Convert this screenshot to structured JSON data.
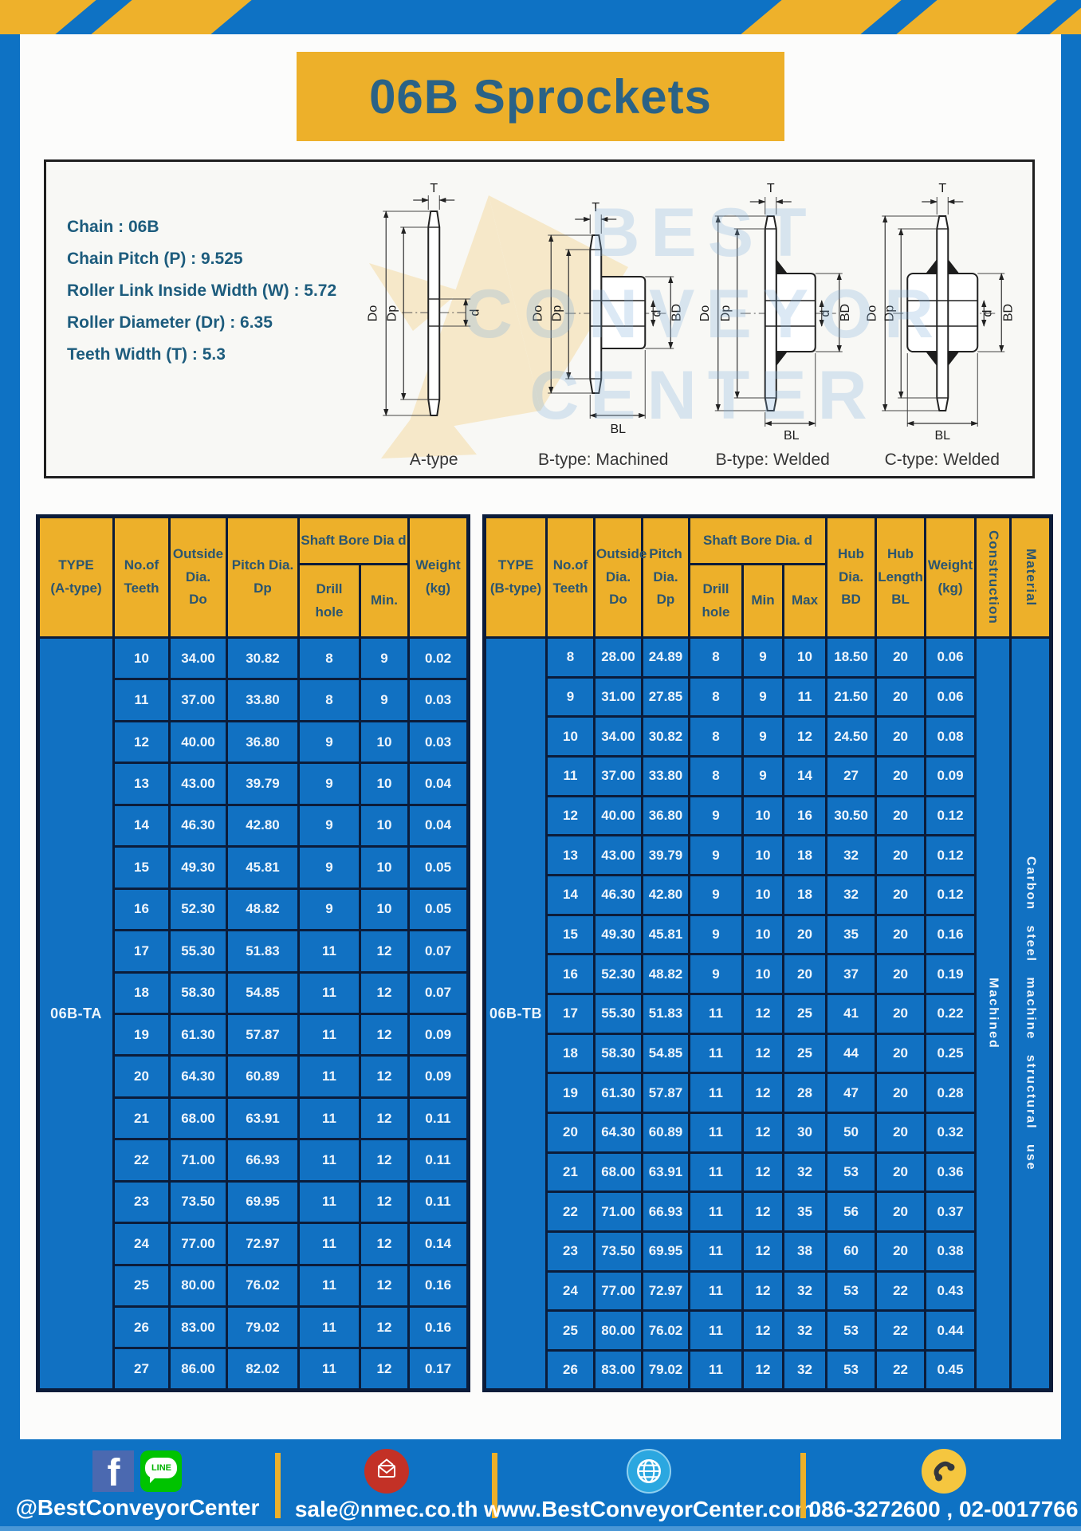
{
  "page": {
    "title": "06B Sprockets"
  },
  "specs": {
    "lines": [
      "Chain : 06B",
      "Chain Pitch (P) : 9.525",
      "Roller Link Inside Width (W) : 5.72",
      "Roller Diameter (Dr) : 6.35",
      "Teeth Width (T) : 5.3"
    ]
  },
  "diagram": {
    "watermark": [
      "BEST",
      "CONVEYOR",
      "CENTER"
    ],
    "dims": {
      "T": "T",
      "Do": "Do",
      "Dp": "Dp",
      "d": "d",
      "BD": "BD",
      "BL": "BL"
    },
    "captions": [
      "A-type",
      "B-type: Machined",
      "B-type: Welded",
      "C-type: Welded"
    ]
  },
  "table_a": {
    "header": {
      "type": "TYPE\n(A-type)",
      "teeth": "No.of\nTeeth",
      "outside": "Outside\nDia.\nDo",
      "pitch": "Pitch Dia.\nDp",
      "shaft_bore": "Shaft Bore Dia d",
      "drill": "Drill hole",
      "min": "Min.",
      "weight": "Weight\n(kg)"
    },
    "type_label": "06B-TA",
    "rows": [
      [
        "10",
        "34.00",
        "30.82",
        "8",
        "9",
        "0.02"
      ],
      [
        "11",
        "37.00",
        "33.80",
        "8",
        "9",
        "0.03"
      ],
      [
        "12",
        "40.00",
        "36.80",
        "9",
        "10",
        "0.03"
      ],
      [
        "13",
        "43.00",
        "39.79",
        "9",
        "10",
        "0.04"
      ],
      [
        "14",
        "46.30",
        "42.80",
        "9",
        "10",
        "0.04"
      ],
      [
        "15",
        "49.30",
        "45.81",
        "9",
        "10",
        "0.05"
      ],
      [
        "16",
        "52.30",
        "48.82",
        "9",
        "10",
        "0.05"
      ],
      [
        "17",
        "55.30",
        "51.83",
        "11",
        "12",
        "0.07"
      ],
      [
        "18",
        "58.30",
        "54.85",
        "11",
        "12",
        "0.07"
      ],
      [
        "19",
        "61.30",
        "57.87",
        "11",
        "12",
        "0.09"
      ],
      [
        "20",
        "64.30",
        "60.89",
        "11",
        "12",
        "0.09"
      ],
      [
        "21",
        "68.00",
        "63.91",
        "11",
        "12",
        "0.11"
      ],
      [
        "22",
        "71.00",
        "66.93",
        "11",
        "12",
        "0.11"
      ],
      [
        "23",
        "73.50",
        "69.95",
        "11",
        "12",
        "0.11"
      ],
      [
        "24",
        "77.00",
        "72.97",
        "11",
        "12",
        "0.14"
      ],
      [
        "25",
        "80.00",
        "76.02",
        "11",
        "12",
        "0.16"
      ],
      [
        "26",
        "83.00",
        "79.02",
        "11",
        "12",
        "0.16"
      ],
      [
        "27",
        "86.00",
        "82.02",
        "11",
        "12",
        "0.17"
      ]
    ]
  },
  "table_b": {
    "header": {
      "type": "TYPE\n(B-type)",
      "teeth": "No.of\nTeeth",
      "outside": "Outside\nDia.\nDo",
      "pitch": "Pitch\nDia.\nDp",
      "shaft_bore": "Shaft Bore Dia. d",
      "drill": "Drill hole",
      "min": "Min",
      "max": "Max",
      "hub_dia": "Hub\nDia.\nBD",
      "hub_len": "Hub\nLength\nBL",
      "weight": "Weight\n(kg)",
      "construction": "Construction",
      "material": "Material"
    },
    "type_label": "06B-TB",
    "construction": "Machined",
    "material": "Carbon steel machine structural use",
    "rows": [
      [
        "8",
        "28.00",
        "24.89",
        "8",
        "9",
        "10",
        "18.50",
        "20",
        "0.06"
      ],
      [
        "9",
        "31.00",
        "27.85",
        "8",
        "9",
        "11",
        "21.50",
        "20",
        "0.06"
      ],
      [
        "10",
        "34.00",
        "30.82",
        "8",
        "9",
        "12",
        "24.50",
        "20",
        "0.08"
      ],
      [
        "11",
        "37.00",
        "33.80",
        "8",
        "9",
        "14",
        "27",
        "20",
        "0.09"
      ],
      [
        "12",
        "40.00",
        "36.80",
        "9",
        "10",
        "16",
        "30.50",
        "20",
        "0.12"
      ],
      [
        "13",
        "43.00",
        "39.79",
        "9",
        "10",
        "18",
        "32",
        "20",
        "0.12"
      ],
      [
        "14",
        "46.30",
        "42.80",
        "9",
        "10",
        "18",
        "32",
        "20",
        "0.12"
      ],
      [
        "15",
        "49.30",
        "45.81",
        "9",
        "10",
        "20",
        "35",
        "20",
        "0.16"
      ],
      [
        "16",
        "52.30",
        "48.82",
        "9",
        "10",
        "20",
        "37",
        "20",
        "0.19"
      ],
      [
        "17",
        "55.30",
        "51.83",
        "11",
        "12",
        "25",
        "41",
        "20",
        "0.22"
      ],
      [
        "18",
        "58.30",
        "54.85",
        "11",
        "12",
        "25",
        "44",
        "20",
        "0.25"
      ],
      [
        "19",
        "61.30",
        "57.87",
        "11",
        "12",
        "28",
        "47",
        "20",
        "0.28"
      ],
      [
        "20",
        "64.30",
        "60.89",
        "11",
        "12",
        "30",
        "50",
        "20",
        "0.32"
      ],
      [
        "21",
        "68.00",
        "63.91",
        "11",
        "12",
        "32",
        "53",
        "20",
        "0.36"
      ],
      [
        "22",
        "71.00",
        "66.93",
        "11",
        "12",
        "35",
        "56",
        "20",
        "0.37"
      ],
      [
        "23",
        "73.50",
        "69.95",
        "11",
        "12",
        "38",
        "60",
        "20",
        "0.38"
      ],
      [
        "24",
        "77.00",
        "72.97",
        "11",
        "12",
        "32",
        "53",
        "22",
        "0.43"
      ],
      [
        "25",
        "80.00",
        "76.02",
        "11",
        "12",
        "32",
        "53",
        "22",
        "0.44"
      ],
      [
        "26",
        "83.00",
        "79.02",
        "11",
        "12",
        "32",
        "53",
        "22",
        "0.45"
      ]
    ]
  },
  "footer": {
    "social_label": "@BestConveyorCenter",
    "facebook_letter": "f",
    "line_icon_text": "LINE",
    "email": "sale@nmec.co.th",
    "website": "www.BestConveyorCenter.com",
    "phones": "086-3272600 , 02-0017766"
  },
  "colors": {
    "frame_blue": "#0e72c4",
    "header_yellow": "#edb02a",
    "cell_blue": "#1171c2",
    "border_navy": "#0b1c3a",
    "title_text": "#2a6286",
    "spec_text": "#1d5c7d"
  }
}
